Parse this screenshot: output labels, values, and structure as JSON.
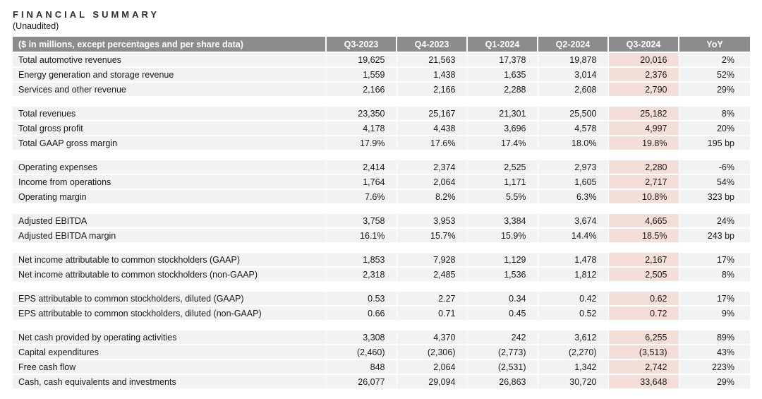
{
  "page": {
    "title": "FINANCIAL SUMMARY",
    "subtitle": "(Unaudited)"
  },
  "colors": {
    "header_bg": "#8a8c8e",
    "header_text": "#ffffff",
    "row_bg": "#f2f2f2",
    "highlight_bg": "#f3ded8",
    "text": "#1a1a1a"
  },
  "table": {
    "header": {
      "label": "($ in millions, except percentages and per share data)",
      "columns": [
        "Q3-2023",
        "Q4-2023",
        "Q1-2024",
        "Q2-2024",
        "Q3-2024",
        "YoY"
      ],
      "highlight_column": "Q3-2024"
    },
    "sections": [
      {
        "rows": [
          {
            "label": "Total automotive revenues",
            "values": [
              "19,625",
              "21,563",
              "17,378",
              "19,878",
              "20,016",
              "2%"
            ]
          },
          {
            "label": "Energy generation and storage revenue",
            "values": [
              "1,559",
              "1,438",
              "1,635",
              "3,014",
              "2,376",
              "52%"
            ]
          },
          {
            "label": "Services and other revenue",
            "values": [
              "2,166",
              "2,166",
              "2,288",
              "2,608",
              "2,790",
              "29%"
            ]
          }
        ]
      },
      {
        "rows": [
          {
            "label": "Total revenues",
            "values": [
              "23,350",
              "25,167",
              "21,301",
              "25,500",
              "25,182",
              "8%"
            ]
          },
          {
            "label": "Total gross profit",
            "values": [
              "4,178",
              "4,438",
              "3,696",
              "4,578",
              "4,997",
              "20%"
            ]
          },
          {
            "label": "Total GAAP gross margin",
            "values": [
              "17.9%",
              "17.6%",
              "17.4%",
              "18.0%",
              "19.8%",
              "195 bp"
            ]
          }
        ]
      },
      {
        "rows": [
          {
            "label": "Operating expenses",
            "values": [
              "2,414",
              "2,374",
              "2,525",
              "2,973",
              "2,280",
              "-6%"
            ]
          },
          {
            "label": "Income from operations",
            "values": [
              "1,764",
              "2,064",
              "1,171",
              "1,605",
              "2,717",
              "54%"
            ]
          },
          {
            "label": "Operating margin",
            "values": [
              "7.6%",
              "8.2%",
              "5.5%",
              "6.3%",
              "10.8%",
              "323 bp"
            ]
          }
        ]
      },
      {
        "rows": [
          {
            "label": "Adjusted EBITDA",
            "values": [
              "3,758",
              "3,953",
              "3,384",
              "3,674",
              "4,665",
              "24%"
            ]
          },
          {
            "label": "Adjusted EBITDA margin",
            "values": [
              "16.1%",
              "15.7%",
              "15.9%",
              "14.4%",
              "18.5%",
              "243 bp"
            ]
          }
        ]
      },
      {
        "rows": [
          {
            "label": "Net income attributable to common stockholders (GAAP)",
            "values": [
              "1,853",
              "7,928",
              "1,129",
              "1,478",
              "2,167",
              "17%"
            ]
          },
          {
            "label": "Net income attributable to common stockholders (non-GAAP)",
            "values": [
              "2,318",
              "2,485",
              "1,536",
              "1,812",
              "2,505",
              "8%"
            ]
          }
        ]
      },
      {
        "rows": [
          {
            "label": "EPS attributable to common stockholders, diluted (GAAP)",
            "values": [
              "0.53",
              "2.27",
              "0.34",
              "0.42",
              "0.62",
              "17%"
            ]
          },
          {
            "label": "EPS attributable to common stockholders, diluted (non-GAAP)",
            "values": [
              "0.66",
              "0.71",
              "0.45",
              "0.52",
              "0.72",
              "9%"
            ]
          }
        ]
      },
      {
        "rows": [
          {
            "label": "Net cash provided by operating activities",
            "values": [
              "3,308",
              "4,370",
              "242",
              "3,612",
              "6,255",
              "89%"
            ]
          },
          {
            "label": "Capital expenditures",
            "values": [
              "(2,460)",
              "(2,306)",
              "(2,773)",
              "(2,270)",
              "(3,513)",
              "43%"
            ]
          },
          {
            "label": "Free cash flow",
            "values": [
              "848",
              "2,064",
              "(2,531)",
              "1,342",
              "2,742",
              "223%"
            ]
          },
          {
            "label": "Cash, cash equivalents and investments",
            "values": [
              "26,077",
              "29,094",
              "26,863",
              "30,720",
              "33,648",
              "29%"
            ]
          }
        ]
      }
    ]
  }
}
